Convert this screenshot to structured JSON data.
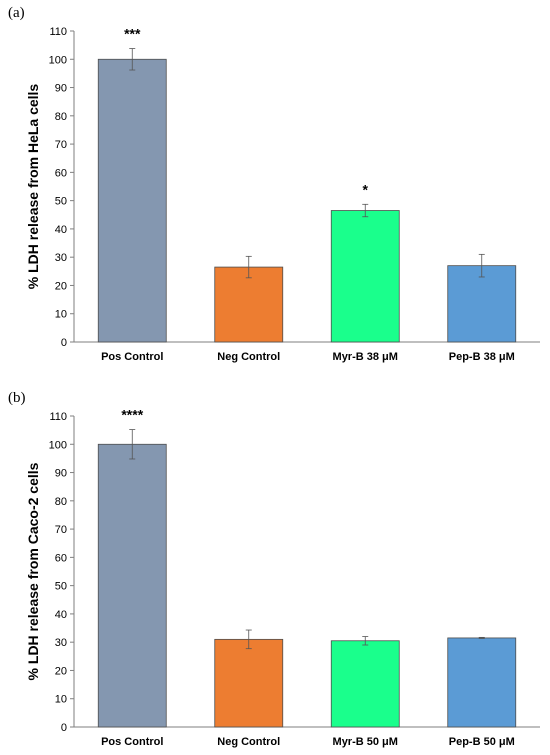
{
  "chart_data": [
    {
      "type": "bar",
      "panel": "(a)",
      "ylabel": "% LDH release from HeLa cells",
      "ylim": [
        0,
        110
      ],
      "yticks": [
        0,
        10,
        20,
        30,
        40,
        50,
        60,
        70,
        80,
        90,
        100,
        110
      ],
      "categories": [
        "Pos Control",
        "Neg Control",
        "Myr-B 38 μM",
        "Pep-B 38 μM"
      ],
      "values": [
        100,
        26.5,
        46.5,
        27
      ],
      "errors": [
        3.8,
        3.8,
        2.2,
        4.0
      ],
      "significance": [
        "***",
        "",
        "*",
        ""
      ],
      "colors": [
        "#8497b0",
        "#ed7d31",
        "#1aff8c",
        "#5b9bd5"
      ],
      "grid": false
    },
    {
      "type": "bar",
      "panel": "(b)",
      "ylabel": "% LDH release from Caco-2 cells",
      "ylim": [
        0,
        110
      ],
      "yticks": [
        0,
        10,
        20,
        30,
        40,
        50,
        60,
        70,
        80,
        90,
        100,
        110
      ],
      "categories": [
        "Pos Control",
        "Neg Control",
        "Myr-B 50 μM",
        "Pep-B 50 μM"
      ],
      "values": [
        100,
        31,
        30.5,
        31.5
      ],
      "errors": [
        5.2,
        3.3,
        1.5,
        0.2
      ],
      "significance": [
        "****",
        "",
        "",
        ""
      ],
      "colors": [
        "#8497b0",
        "#ed7d31",
        "#1aff8c",
        "#5b9bd5"
      ],
      "grid": false
    }
  ]
}
